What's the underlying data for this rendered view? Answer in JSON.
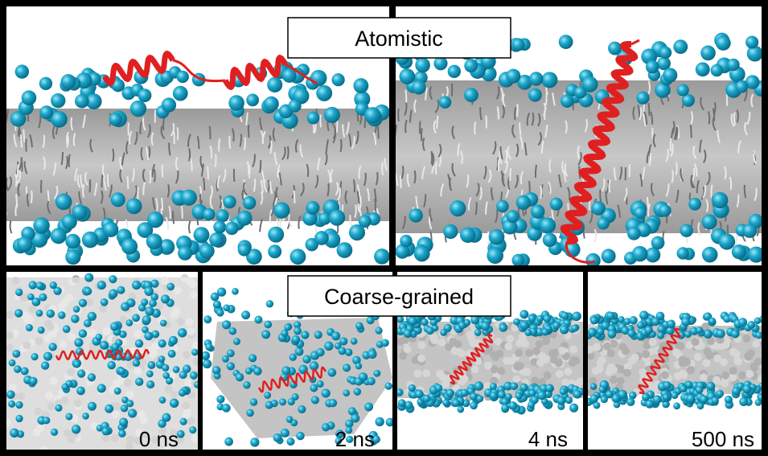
{
  "top_label": "Atomistic",
  "bottom_label": "Coarse-grained",
  "time_labels": [
    "0 ns",
    "2 ns",
    "4 ns",
    "500 ns"
  ]
}
